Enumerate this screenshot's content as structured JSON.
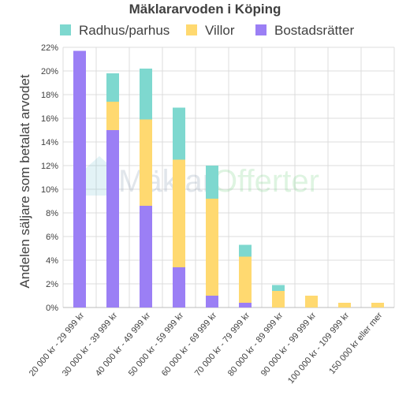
{
  "chart_data": {
    "type": "bar",
    "stacked": true,
    "title": "Mäklararvoden i Köping",
    "xlabel": "",
    "ylabel": "Andelen säljare som betalat arvodet",
    "ylim": [
      0,
      22
    ],
    "yticks": [
      "0%",
      "2%",
      "4%",
      "6%",
      "8%",
      "10%",
      "12%",
      "14%",
      "16%",
      "18%",
      "20%",
      "22%"
    ],
    "grid": true,
    "legend_position": "top",
    "categories": [
      "20 000 kr - 29 999 kr",
      "30 000 kr - 39 999 kr",
      "40 000 kr - 49 999 kr",
      "50 000 kr - 59 999 kr",
      "60 000 kr - 69 999 kr",
      "70 000 kr - 79 999 kr",
      "80 000 kr - 89 999 kr",
      "90 000 kr - 99 999 kr",
      "100 000 kr - 109 999 kr",
      "150 000 kr eller mer"
    ],
    "series": [
      {
        "name": "Bostadsrätter",
        "color": "#9b7ff5",
        "values": [
          21.7,
          15.0,
          8.6,
          3.4,
          1.0,
          0.4,
          0,
          0,
          0,
          0
        ]
      },
      {
        "name": "Villor",
        "color": "#ffd970",
        "values": [
          0,
          2.4,
          7.3,
          9.1,
          8.2,
          3.9,
          1.4,
          1.0,
          0.4,
          0.4
        ]
      },
      {
        "name": "Radhus/parhus",
        "color": "#7ed8cf",
        "values": [
          0,
          2.4,
          4.3,
          4.4,
          2.8,
          1.0,
          0.5,
          0,
          0,
          0
        ]
      }
    ],
    "legend_order": [
      "Radhus/parhus",
      "Villor",
      "Bostadsrätter"
    ]
  },
  "watermark": {
    "brand_part1": "Mäklar",
    "brand_part2": "Offerter",
    "icon": "house-logo-icon"
  }
}
